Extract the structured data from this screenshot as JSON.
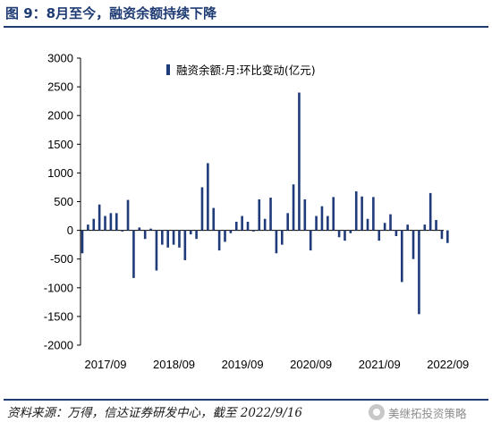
{
  "figure": {
    "title": "图 9：8月至今，融资余额持续下降",
    "source": "资料来源：万得，信达证券研发中心，截至 2022/9/16",
    "watermark": "美继拓投资策略",
    "watermark_icon": "wechat-logo-icon"
  },
  "colors": {
    "accent": "#1f3b73",
    "bar": "#1f3b7a",
    "axis": "#000000"
  },
  "chart_data": {
    "type": "bar",
    "title": "",
    "xlabel": "",
    "ylabel": "",
    "ylim": [
      -2000,
      3000
    ],
    "yticks": [
      "3000",
      "2500",
      "2000",
      "1500",
      "1000",
      "500",
      "0",
      "-500",
      "-1000",
      "-1500",
      "-2000"
    ],
    "ytick_values": [
      3000,
      2500,
      2000,
      1500,
      1000,
      500,
      0,
      -500,
      -1000,
      -1500,
      -2000
    ],
    "xtick_labels": [
      "2017/09",
      "2018/09",
      "2019/09",
      "2020/09",
      "2021/09",
      "2022/09"
    ],
    "xtick_positions": [
      0,
      12,
      24,
      36,
      48,
      60
    ],
    "grid": false,
    "legend": {
      "position": "top-right"
    },
    "series": [
      {
        "name": "融资余额:月:环比变动(亿元)",
        "x_start": "2017/09",
        "values": [
          -400,
          100,
          200,
          450,
          250,
          300,
          300,
          -20,
          530,
          -830,
          50,
          -150,
          30,
          -700,
          -250,
          -300,
          -250,
          -300,
          -520,
          -70,
          -150,
          750,
          1170,
          390,
          -350,
          -200,
          -50,
          150,
          250,
          150,
          -20,
          540,
          200,
          570,
          -400,
          -250,
          300,
          800,
          2400,
          540,
          -350,
          250,
          420,
          250,
          580,
          -120,
          -180,
          -50,
          680,
          590,
          200,
          580,
          -180,
          130,
          280,
          -100,
          -900,
          100,
          -500,
          -1460,
          100,
          650,
          180,
          -150,
          -220
        ]
      }
    ]
  }
}
